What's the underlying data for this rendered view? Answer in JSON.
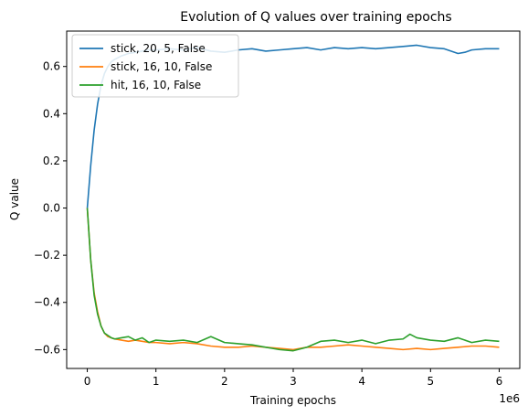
{
  "chart_data": {
    "type": "line",
    "title": "Evolution of Q values over training epochs",
    "xlabel": "Training epochs",
    "ylabel": "Q value",
    "x_offset_label": "1e6",
    "xlim": [
      -0.3,
      6.3
    ],
    "ylim": [
      -0.68,
      0.75
    ],
    "xticks": [
      0,
      1,
      2,
      3,
      4,
      5,
      6
    ],
    "yticks": [
      -0.6,
      -0.4,
      -0.2,
      0.0,
      0.2,
      0.4,
      0.6
    ],
    "xtick_labels": [
      "0",
      "1",
      "2",
      "3",
      "4",
      "5",
      "6"
    ],
    "ytick_labels": [
      "−0.6",
      "−0.4",
      "−0.2",
      "0.0",
      "0.2",
      "0.4",
      "0.6"
    ],
    "grid": false,
    "legend_position": "top-left",
    "series": [
      {
        "name": "stick, 20, 5, False",
        "color": "#1f77b4",
        "x": [
          0,
          0.05,
          0.1,
          0.15,
          0.2,
          0.25,
          0.3,
          0.35,
          0.4,
          0.5,
          0.6,
          0.7,
          0.8,
          0.9,
          1.0,
          1.2,
          1.4,
          1.6,
          1.8,
          2.0,
          2.2,
          2.4,
          2.6,
          2.8,
          3.0,
          3.2,
          3.4,
          3.6,
          3.8,
          4.0,
          4.2,
          4.4,
          4.6,
          4.8,
          5.0,
          5.2,
          5.4,
          5.5,
          5.6,
          5.8,
          6.0
        ],
        "y": [
          0.0,
          0.18,
          0.33,
          0.44,
          0.52,
          0.57,
          0.6,
          0.62,
          0.63,
          0.645,
          0.655,
          0.66,
          0.665,
          0.67,
          0.67,
          0.675,
          0.67,
          0.68,
          0.665,
          0.66,
          0.67,
          0.675,
          0.665,
          0.67,
          0.675,
          0.68,
          0.67,
          0.68,
          0.675,
          0.68,
          0.675,
          0.68,
          0.685,
          0.69,
          0.68,
          0.675,
          0.655,
          0.66,
          0.67,
          0.675,
          0.675
        ]
      },
      {
        "name": "stick, 16, 10, False",
        "color": "#ff7f0e",
        "x": [
          0,
          0.05,
          0.1,
          0.15,
          0.2,
          0.25,
          0.3,
          0.35,
          0.4,
          0.5,
          0.6,
          0.7,
          0.8,
          0.9,
          1.0,
          1.2,
          1.4,
          1.6,
          1.8,
          2.0,
          2.2,
          2.4,
          2.6,
          2.8,
          3.0,
          3.2,
          3.4,
          3.6,
          3.8,
          4.0,
          4.2,
          4.4,
          4.6,
          4.8,
          5.0,
          5.2,
          5.4,
          5.6,
          5.8,
          6.0
        ],
        "y": [
          0.0,
          -0.22,
          -0.36,
          -0.44,
          -0.5,
          -0.53,
          -0.545,
          -0.55,
          -0.555,
          -0.56,
          -0.565,
          -0.56,
          -0.565,
          -0.57,
          -0.57,
          -0.575,
          -0.57,
          -0.575,
          -0.585,
          -0.59,
          -0.59,
          -0.585,
          -0.59,
          -0.595,
          -0.6,
          -0.59,
          -0.59,
          -0.585,
          -0.58,
          -0.585,
          -0.59,
          -0.595,
          -0.6,
          -0.595,
          -0.6,
          -0.595,
          -0.59,
          -0.585,
          -0.585,
          -0.59
        ]
      },
      {
        "name": "hit, 16, 10, False",
        "color": "#2ca02c",
        "x": [
          0,
          0.05,
          0.1,
          0.15,
          0.2,
          0.25,
          0.3,
          0.35,
          0.4,
          0.5,
          0.6,
          0.7,
          0.8,
          0.9,
          1.0,
          1.2,
          1.4,
          1.6,
          1.8,
          2.0,
          2.2,
          2.4,
          2.6,
          2.8,
          3.0,
          3.2,
          3.4,
          3.6,
          3.8,
          4.0,
          4.2,
          4.4,
          4.6,
          4.7,
          4.8,
          5.0,
          5.2,
          5.4,
          5.6,
          5.8,
          6.0
        ],
        "y": [
          0.0,
          -0.22,
          -0.37,
          -0.45,
          -0.5,
          -0.53,
          -0.54,
          -0.55,
          -0.555,
          -0.55,
          -0.545,
          -0.56,
          -0.55,
          -0.57,
          -0.56,
          -0.565,
          -0.56,
          -0.57,
          -0.545,
          -0.57,
          -0.575,
          -0.58,
          -0.59,
          -0.6,
          -0.605,
          -0.59,
          -0.565,
          -0.56,
          -0.57,
          -0.56,
          -0.575,
          -0.56,
          -0.555,
          -0.535,
          -0.55,
          -0.56,
          -0.565,
          -0.55,
          -0.57,
          -0.56,
          -0.565
        ]
      }
    ]
  }
}
